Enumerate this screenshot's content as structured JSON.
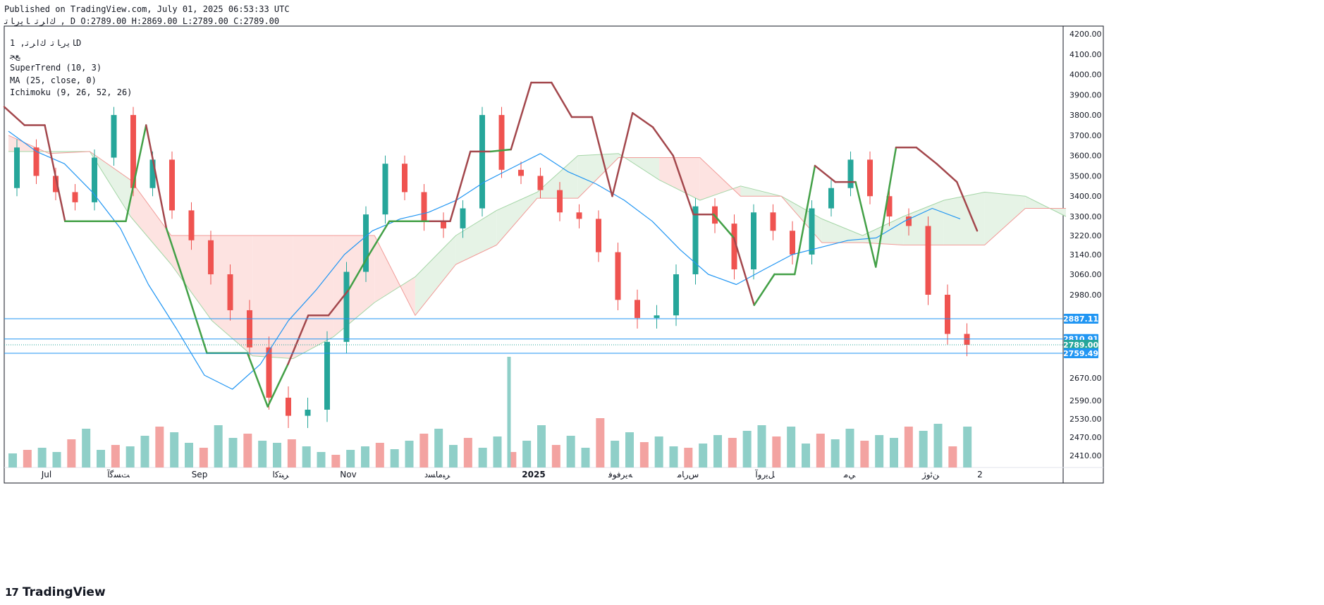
{
  "header": {
    "published": "Published on TradingView.com, July 01, 2025 06:53:33 UTC",
    "ohlc_line": "ﻙﺍﺮﺗ ﺎﻳﺭﺎﺗ , D O:2789.00 H:2869.00 L:2789.00 C:2789.00"
  },
  "legend": {
    "symbol_line": "ﺎﻳﺭﺎﺗ ﻙﺍﺮﺗ, 1D",
    "exchange": "ﻊﺠ",
    "supertrend": "SuperTrend (10, 3)",
    "ma": "MA (25, close, 0)",
    "ichimoku": "Ichimoku (9, 26, 52, 26)"
  },
  "branding": {
    "logo": "17",
    "name": "TradingView"
  },
  "colors": {
    "up": "#26a69a",
    "down": "#ef5350",
    "up_volume": "#8fcfc8",
    "down_volume": "#f3a3a1",
    "supertrend_up": "#43a047",
    "supertrend_down": "#a3474c",
    "ma": "#2196f3",
    "cloud_bull": "#e6f3e6",
    "cloud_bear": "#fde3e1",
    "level_line": "#2196f3",
    "last_price_tag": "#26a69a"
  },
  "chart_data": {
    "type": "candlestick",
    "symbol": "ﺎﻳﺭﺎﺗ ﻙﺍﺮﺗ",
    "interval": "1D",
    "last": {
      "open": 2789.0,
      "high": 2869.0,
      "low": 2789.0,
      "close": 2789.0
    },
    "y_ticks": [
      4200,
      4100,
      4000,
      3900,
      3800,
      3700,
      3600,
      3500,
      3400,
      3300,
      3220,
      3140,
      3060,
      2980,
      2670,
      2590,
      2530,
      2470,
      2410
    ],
    "price_tags": [
      {
        "value": "2887.11",
        "color": "#2196f3"
      },
      {
        "value": "2810.91",
        "color": "#2196f3"
      },
      {
        "value": "2789.00",
        "color": "#26a69a"
      },
      {
        "value": "2759.49",
        "color": "#2196f3"
      }
    ],
    "x_labels": [
      "Jul",
      "ﺖﺴﮔﺁ",
      "Sep",
      "ﺮﺒﺘﻛﺍ",
      "Nov",
      "ﺮﺒﻣﺎﺴﺩ",
      "2025",
      "ﻪﻳﺮﻓﻮﻓ",
      "ﺱﺭﺎﻣ",
      "ﻞﻳﺭﻭﺁ",
      "ﻲﻣ",
      "ﻦﺋﻭﮊ",
      "2"
    ],
    "series": [
      {
        "name": "Price",
        "values": [
          3440,
          3640,
          3500,
          3420,
          3370,
          3590,
          3800,
          3440,
          3580,
          3330,
          3200,
          3060,
          2920,
          2780,
          2600,
          2540,
          2560,
          2800,
          3070,
          3310,
          3560,
          3420,
          3280,
          3250,
          3340,
          3800,
          3530,
          3500,
          3430,
          3320,
          3290,
          3150,
          2960,
          2890,
          2900,
          3060,
          3350,
          3270,
          3080,
          3320,
          3240,
          3140,
          3340,
          3440,
          3580,
          3400,
          3300,
          3260,
          2980,
          2830,
          2789
        ]
      },
      {
        "name": "SuperTrend (10, 3)",
        "values": [
          3840,
          3750,
          3750,
          3280,
          3280,
          3280,
          3280,
          3750,
          3250,
          3000,
          2760,
          2760,
          2760,
          2570,
          2720,
          2900,
          2900,
          3000,
          3140,
          3280,
          3280,
          3280,
          3280,
          3620,
          3620,
          3630,
          3960,
          3960,
          3790,
          3790,
          3400,
          3810,
          3740,
          3600,
          3310,
          3310,
          3210,
          2940,
          3060,
          3060,
          3550,
          3470,
          3470,
          3090,
          3640,
          3640,
          3560,
          3470,
          3240
        ]
      },
      {
        "name": "MA (25, close, 0)",
        "values": [
          3720,
          3620,
          3560,
          3420,
          3250,
          3020,
          2850,
          2680,
          2630,
          2720,
          2880,
          3000,
          3140,
          3240,
          3290,
          3320,
          3380,
          3470,
          3540,
          3610,
          3520,
          3460,
          3380,
          3280,
          3160,
          3060,
          3020,
          3080,
          3140,
          3170,
          3200,
          3210,
          3280,
          3340,
          3290
        ]
      },
      {
        "name": "Ichimoku Span A",
        "values": [
          3620,
          3620,
          3620,
          3300,
          3100,
          2880,
          2750,
          2740,
          2820,
          2950,
          3050,
          3220,
          3330,
          3420,
          3600,
          3610,
          3480,
          3380,
          3450,
          3400,
          3290,
          3220,
          3300,
          3380,
          3420,
          3400,
          3300
        ]
      },
      {
        "name": "Ichimoku Span B",
        "values": [
          3700,
          3610,
          3620,
          3480,
          3220,
          3220,
          3220,
          3220,
          3220,
          3220,
          2900,
          3100,
          3180,
          3390,
          3390,
          3590,
          3590,
          3590,
          3400,
          3400,
          3190,
          3190,
          3180,
          3180,
          3180,
          3340,
          3340
        ]
      }
    ],
    "volume": {
      "values": [
        20,
        25,
        28,
        22,
        40,
        55,
        25,
        32,
        30,
        45,
        58,
        50,
        35,
        28,
        60,
        42,
        48,
        38,
        35,
        40,
        30,
        22,
        18,
        25,
        30,
        35,
        26,
        38,
        48,
        55,
        32,
        42,
        28,
        44,
        22,
        38,
        60,
        32,
        45,
        28,
        70,
        38,
        50,
        36,
        44,
        30,
        28,
        34,
        46,
        42,
        52,
        60,
        44,
        58,
        34,
        48,
        40,
        55,
        38,
        46,
        42,
        58,
        52,
        62,
        30,
        58
      ],
      "max_spike": 135
    },
    "grid": false,
    "legend_position": "top-left"
  }
}
